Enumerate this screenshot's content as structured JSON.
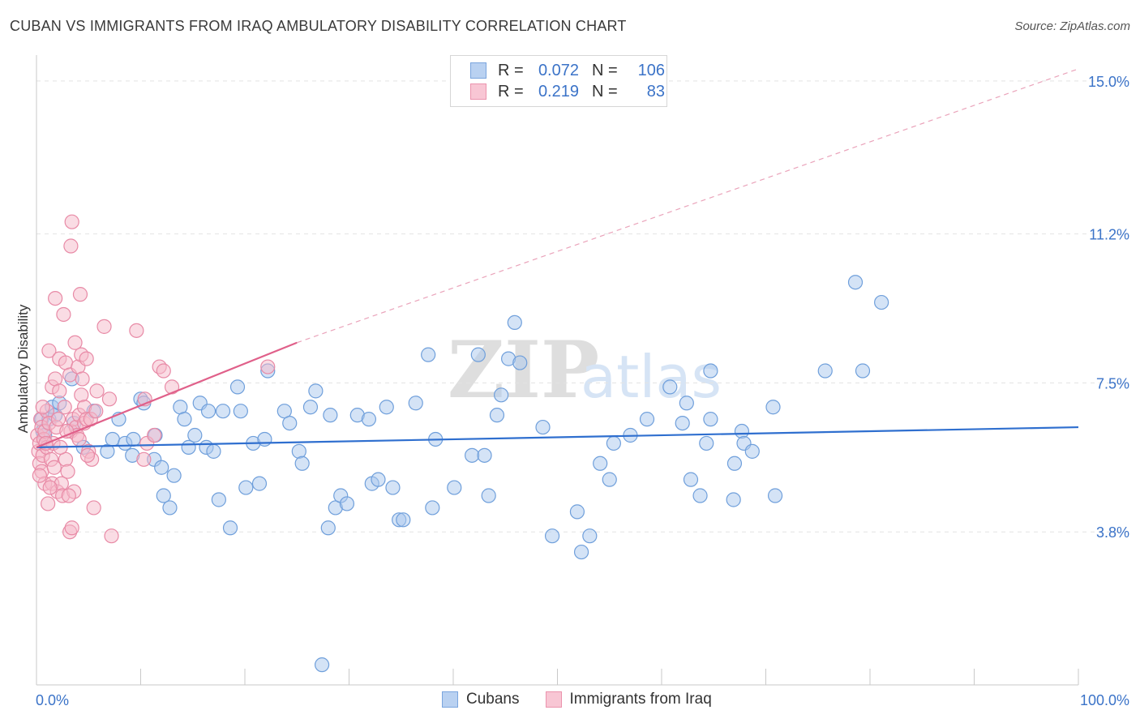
{
  "header": {
    "title": "CUBAN VS IMMIGRANTS FROM IRAQ AMBULATORY DISABILITY CORRELATION CHART",
    "source": "Source: ZipAtlas.com"
  },
  "legend_box": {
    "rows": [
      {
        "r_label": "R =",
        "r_value": "0.072",
        "n_label": "N =",
        "n_value": "106"
      },
      {
        "r_label": "R =",
        "r_value": "0.219",
        "n_label": "N =",
        "n_value": "83"
      }
    ]
  },
  "bottom_legend": {
    "items": [
      {
        "label": "Cubans"
      },
      {
        "label": "Immigrants from Iraq"
      }
    ]
  },
  "colors": {
    "cubans_fill": "#a9c7ee",
    "cubans_stroke": "#6f9fdb",
    "cubans_line": "#2f6fcf",
    "iraq_fill": "#f6b9ca",
    "iraq_stroke": "#e88aa6",
    "iraq_line": "#e0608a",
    "tick_label": "#3b73c8",
    "grid": "#e3e3e3"
  },
  "watermark": {
    "zip": "ZIP",
    "atlas": "atlas"
  },
  "chart_data": {
    "type": "scatter",
    "title": "CUBAN VS IMMIGRANTS FROM IRAQ AMBULATORY DISABILITY CORRELATION CHART",
    "xlabel": "",
    "ylabel": "Ambulatory Disability",
    "xlim": [
      0,
      100
    ],
    "ylim": [
      0,
      15.5
    ],
    "x_tick_labels": [
      "0.0%",
      "100.0%"
    ],
    "y_ticks": [
      3.8,
      7.5,
      11.2,
      15.0
    ],
    "y_tick_labels": [
      "3.8%",
      "7.5%",
      "11.2%",
      "15.0%"
    ],
    "grid": "horizontal dashed",
    "legend_position": "top-center",
    "series": [
      {
        "name": "Cubans",
        "r": 0.072,
        "n": 106,
        "trend": {
          "x": [
            0,
            100
          ],
          "y": [
            5.9,
            6.4
          ]
        },
        "points": [
          [
            0.5,
            6.6
          ],
          [
            0.6,
            6.3
          ],
          [
            0.8,
            6.2
          ],
          [
            1.2,
            6.6
          ],
          [
            1.5,
            6.9
          ],
          [
            1.8,
            6.7
          ],
          [
            2.2,
            7.0
          ],
          [
            3.4,
            7.6
          ],
          [
            3.6,
            6.5
          ],
          [
            4.5,
            5.9
          ],
          [
            5.5,
            6.8
          ],
          [
            6.8,
            5.8
          ],
          [
            7.3,
            6.1
          ],
          [
            7.9,
            6.6
          ],
          [
            8.5,
            6.0
          ],
          [
            9.3,
            6.1
          ],
          [
            9.2,
            5.7
          ],
          [
            10.0,
            7.1
          ],
          [
            10.3,
            7.0
          ],
          [
            11.3,
            5.6
          ],
          [
            11.4,
            6.2
          ],
          [
            12.0,
            5.4
          ],
          [
            12.2,
            4.7
          ],
          [
            12.8,
            4.4
          ],
          [
            13.2,
            5.2
          ],
          [
            13.8,
            6.9
          ],
          [
            14.2,
            6.6
          ],
          [
            14.6,
            5.9
          ],
          [
            15.2,
            6.2
          ],
          [
            15.7,
            7.0
          ],
          [
            16.3,
            5.9
          ],
          [
            16.5,
            6.8
          ],
          [
            17.0,
            5.8
          ],
          [
            17.5,
            4.6
          ],
          [
            17.9,
            6.8
          ],
          [
            18.6,
            3.9
          ],
          [
            19.3,
            7.4
          ],
          [
            19.6,
            6.8
          ],
          [
            20.1,
            4.9
          ],
          [
            20.8,
            6.0
          ],
          [
            21.4,
            5.0
          ],
          [
            21.9,
            6.1
          ],
          [
            22.2,
            7.8
          ],
          [
            23.8,
            6.8
          ],
          [
            24.3,
            6.5
          ],
          [
            25.2,
            5.8
          ],
          [
            25.5,
            5.5
          ],
          [
            26.3,
            6.9
          ],
          [
            26.8,
            7.3
          ],
          [
            27.4,
            0.5
          ],
          [
            28.0,
            3.9
          ],
          [
            28.2,
            6.7
          ],
          [
            28.7,
            4.4
          ],
          [
            29.2,
            4.7
          ],
          [
            29.8,
            4.5
          ],
          [
            30.8,
            6.7
          ],
          [
            31.9,
            6.6
          ],
          [
            32.2,
            5.0
          ],
          [
            32.8,
            5.1
          ],
          [
            33.6,
            6.9
          ],
          [
            34.2,
            4.9
          ],
          [
            34.8,
            4.1
          ],
          [
            35.2,
            4.1
          ],
          [
            36.4,
            7.0
          ],
          [
            37.6,
            8.2
          ],
          [
            38.0,
            4.4
          ],
          [
            38.3,
            6.1
          ],
          [
            40.1,
            4.9
          ],
          [
            41.8,
            5.7
          ],
          [
            42.4,
            8.2
          ],
          [
            43.0,
            5.7
          ],
          [
            43.4,
            4.7
          ],
          [
            44.2,
            6.7
          ],
          [
            44.6,
            7.2
          ],
          [
            45.3,
            8.1
          ],
          [
            45.9,
            9.0
          ],
          [
            46.4,
            8.0
          ],
          [
            48.6,
            6.4
          ],
          [
            49.5,
            3.7
          ],
          [
            51.9,
            4.3
          ],
          [
            52.3,
            3.3
          ],
          [
            53.1,
            3.7
          ],
          [
            54.1,
            5.5
          ],
          [
            55.0,
            5.1
          ],
          [
            55.4,
            6.0
          ],
          [
            57.0,
            6.2
          ],
          [
            58.6,
            6.6
          ],
          [
            60.8,
            7.4
          ],
          [
            62.0,
            6.5
          ],
          [
            62.4,
            7.0
          ],
          [
            62.8,
            5.1
          ],
          [
            63.7,
            4.7
          ],
          [
            64.3,
            6.0
          ],
          [
            64.7,
            7.8
          ],
          [
            67.0,
            5.5
          ],
          [
            67.7,
            6.3
          ],
          [
            67.9,
            6.0
          ],
          [
            68.7,
            5.8
          ],
          [
            70.7,
            6.9
          ],
          [
            75.7,
            7.8
          ],
          [
            78.6,
            10.0
          ],
          [
            79.3,
            7.8
          ],
          [
            81.1,
            9.5
          ],
          [
            70.9,
            4.7
          ],
          [
            64.7,
            6.6
          ],
          [
            66.9,
            4.6
          ]
        ]
      },
      {
        "name": "Immigrants from Iraq",
        "r": 0.219,
        "n": 83,
        "trend": {
          "x": [
            0,
            25
          ],
          "y": [
            5.9,
            8.5
          ]
        },
        "trend_extension": {
          "x": [
            25,
            100
          ],
          "y": [
            8.5,
            15.3
          ]
        },
        "points": [
          [
            0.1,
            6.2
          ],
          [
            0.2,
            5.8
          ],
          [
            0.3,
            5.5
          ],
          [
            0.3,
            6.0
          ],
          [
            0.4,
            6.6
          ],
          [
            0.5,
            5.3
          ],
          [
            0.5,
            6.4
          ],
          [
            0.6,
            5.7
          ],
          [
            0.7,
            6.1
          ],
          [
            0.8,
            5.0
          ],
          [
            0.8,
            6.3
          ],
          [
            1.0,
            5.9
          ],
          [
            1.0,
            6.8
          ],
          [
            1.1,
            4.5
          ],
          [
            1.2,
            6.5
          ],
          [
            1.2,
            8.3
          ],
          [
            1.4,
            5.6
          ],
          [
            1.5,
            7.4
          ],
          [
            1.5,
            5.0
          ],
          [
            1.6,
            6.0
          ],
          [
            1.8,
            7.6
          ],
          [
            1.8,
            9.6
          ],
          [
            1.9,
            6.4
          ],
          [
            2.0,
            4.8
          ],
          [
            2.2,
            7.3
          ],
          [
            2.2,
            8.1
          ],
          [
            2.4,
            5.0
          ],
          [
            2.5,
            4.7
          ],
          [
            2.6,
            9.2
          ],
          [
            2.7,
            6.9
          ],
          [
            2.8,
            5.6
          ],
          [
            2.8,
            8.0
          ],
          [
            3.0,
            5.3
          ],
          [
            3.2,
            7.7
          ],
          [
            3.2,
            3.8
          ],
          [
            3.3,
            6.3
          ],
          [
            3.3,
            10.9
          ],
          [
            3.4,
            11.5
          ],
          [
            3.4,
            3.9
          ],
          [
            3.5,
            6.6
          ],
          [
            3.6,
            4.8
          ],
          [
            3.7,
            8.5
          ],
          [
            3.8,
            6.4
          ],
          [
            3.9,
            6.2
          ],
          [
            4.0,
            7.9
          ],
          [
            4.1,
            6.7
          ],
          [
            4.2,
            9.7
          ],
          [
            4.3,
            7.2
          ],
          [
            4.3,
            8.2
          ],
          [
            4.4,
            7.6
          ],
          [
            4.6,
            6.5
          ],
          [
            4.6,
            6.9
          ],
          [
            4.8,
            6.6
          ],
          [
            4.8,
            8.1
          ],
          [
            5.0,
            5.8
          ],
          [
            5.2,
            6.6
          ],
          [
            5.3,
            5.6
          ],
          [
            5.5,
            4.4
          ],
          [
            5.8,
            7.3
          ],
          [
            6.5,
            8.9
          ],
          [
            7.0,
            7.1
          ],
          [
            7.2,
            3.7
          ],
          [
            9.6,
            8.8
          ],
          [
            10.3,
            5.6
          ],
          [
            10.4,
            7.1
          ],
          [
            10.6,
            6.0
          ],
          [
            11.3,
            6.2
          ],
          [
            11.8,
            7.9
          ],
          [
            12.2,
            7.8
          ],
          [
            13.0,
            7.4
          ],
          [
            22.2,
            7.9
          ],
          [
            0.3,
            5.2
          ],
          [
            0.9,
            6.0
          ],
          [
            1.3,
            4.9
          ],
          [
            2.1,
            6.6
          ],
          [
            2.9,
            6.3
          ],
          [
            3.1,
            4.7
          ],
          [
            4.1,
            6.1
          ],
          [
            4.9,
            5.7
          ],
          [
            5.7,
            6.8
          ],
          [
            1.7,
            5.4
          ],
          [
            2.3,
            5.9
          ],
          [
            0.6,
            6.9
          ]
        ]
      }
    ]
  }
}
